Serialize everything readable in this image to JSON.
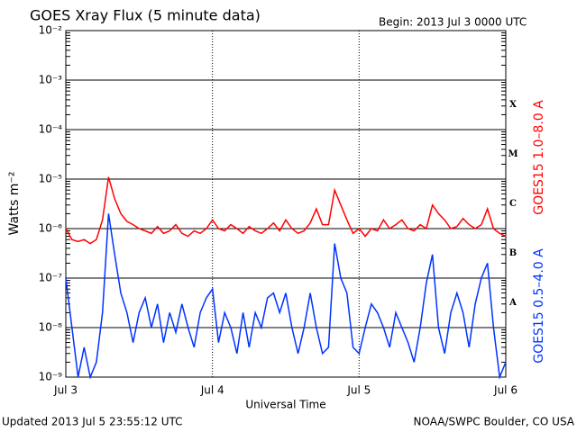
{
  "chart_data": {
    "type": "line",
    "title": "GOES Xray Flux (5 minute data)",
    "subtitle": "Begin:  2013 Jul 3 0000 UTC",
    "y_label": "Watts m⁻²",
    "x_label": "Universal Time",
    "footer_left": "Updated 2013 Jul  5 23:55:12 UTC",
    "footer_right": "NOAA/SWPC Boulder, CO USA",
    "flare_classes": [
      "X",
      "M",
      "C",
      "B",
      "A"
    ],
    "log_y": true,
    "grid": true,
    "xlim": [
      0,
      72
    ],
    "xticks": [
      {
        "value": 0,
        "label": "Jul 3"
      },
      {
        "value": 24,
        "label": "Jul 4"
      },
      {
        "value": 48,
        "label": "Jul 5"
      },
      {
        "value": 72,
        "label": "Jul 6"
      }
    ],
    "ylim": [
      1e-09,
      0.01
    ],
    "yticks": [
      {
        "value": 1e-09,
        "label": "10⁻⁹"
      },
      {
        "value": 1e-08,
        "label": "10⁻⁸"
      },
      {
        "value": 1e-07,
        "label": "10⁻⁷"
      },
      {
        "value": 1e-06,
        "label": "10⁻⁶"
      },
      {
        "value": 1e-05,
        "label": "10⁻⁵"
      },
      {
        "value": 0.0001,
        "label": "10⁻⁴"
      },
      {
        "value": 0.001,
        "label": "10⁻³"
      },
      {
        "value": 0.01,
        "label": "10⁻²"
      }
    ],
    "x": [
      0,
      1,
      2,
      3,
      4,
      5,
      6,
      7,
      8,
      9,
      10,
      11,
      12,
      13,
      14,
      15,
      16,
      17,
      18,
      19,
      20,
      21,
      22,
      23,
      24,
      25,
      26,
      27,
      28,
      29,
      30,
      31,
      32,
      33,
      34,
      35,
      36,
      37,
      38,
      39,
      40,
      41,
      42,
      43,
      44,
      45,
      46,
      47,
      48,
      49,
      50,
      51,
      52,
      53,
      54,
      55,
      56,
      57,
      58,
      59,
      60,
      61,
      62,
      63,
      64,
      65,
      66,
      67,
      68,
      69,
      70,
      71,
      72
    ],
    "series": [
      {
        "name": "GOES15 1.0–8.0 A",
        "color": "#ff0000",
        "values": [
          1e-06,
          6e-07,
          5.5e-07,
          6e-07,
          5e-07,
          6e-07,
          1.5e-06,
          1.1e-05,
          4e-06,
          2e-06,
          1.4e-06,
          1.2e-06,
          1e-06,
          9e-07,
          8e-07,
          1.1e-06,
          8e-07,
          9e-07,
          1.2e-06,
          8e-07,
          7e-07,
          9e-07,
          8e-07,
          1e-06,
          1.5e-06,
          1e-06,
          9e-07,
          1.2e-06,
          1e-06,
          8e-07,
          1.1e-06,
          9e-07,
          8e-07,
          1e-06,
          1.3e-06,
          9e-07,
          1.5e-06,
          1e-06,
          8e-07,
          9e-07,
          1.3e-06,
          2.5e-06,
          1.2e-06,
          1.2e-06,
          6e-06,
          3e-06,
          1.5e-06,
          8e-07,
          1e-06,
          7e-07,
          1e-06,
          9e-07,
          1.5e-06,
          1e-06,
          1.2e-06,
          1.5e-06,
          1e-06,
          9e-07,
          1.2e-06,
          1e-06,
          3e-06,
          2e-06,
          1.5e-06,
          1e-06,
          1.1e-06,
          1.6e-06,
          1.2e-06,
          1e-06,
          1.2e-06,
          2.5e-06,
          1e-06,
          8e-07,
          7e-07
        ]
      },
      {
        "name": "GOES15 0.5–4.0 A",
        "color": "#0033ff",
        "values": [
          1e-07,
          1e-08,
          1e-09,
          4e-09,
          1e-09,
          2e-09,
          2e-08,
          2e-06,
          3e-07,
          5e-08,
          2e-08,
          5e-09,
          2e-08,
          4e-08,
          1e-08,
          3e-08,
          5e-09,
          2e-08,
          8e-09,
          3e-08,
          1e-08,
          4e-09,
          2e-08,
          4e-08,
          6e-08,
          5e-09,
          2e-08,
          1e-08,
          3e-09,
          2e-08,
          4e-09,
          2e-08,
          1e-08,
          4e-08,
          5e-08,
          2e-08,
          5e-08,
          1e-08,
          3e-09,
          1e-08,
          5e-08,
          1e-08,
          3e-09,
          4e-09,
          5e-07,
          1e-07,
          5e-08,
          4e-09,
          3e-09,
          1e-08,
          3e-08,
          2e-08,
          1e-08,
          4e-09,
          2e-08,
          1e-08,
          5e-09,
          2e-09,
          1e-08,
          8e-08,
          3e-07,
          1e-08,
          3e-09,
          2e-08,
          5e-08,
          2e-08,
          4e-09,
          3e-08,
          1e-07,
          2e-07,
          1e-08,
          1e-09,
          2e-09
        ]
      }
    ]
  }
}
